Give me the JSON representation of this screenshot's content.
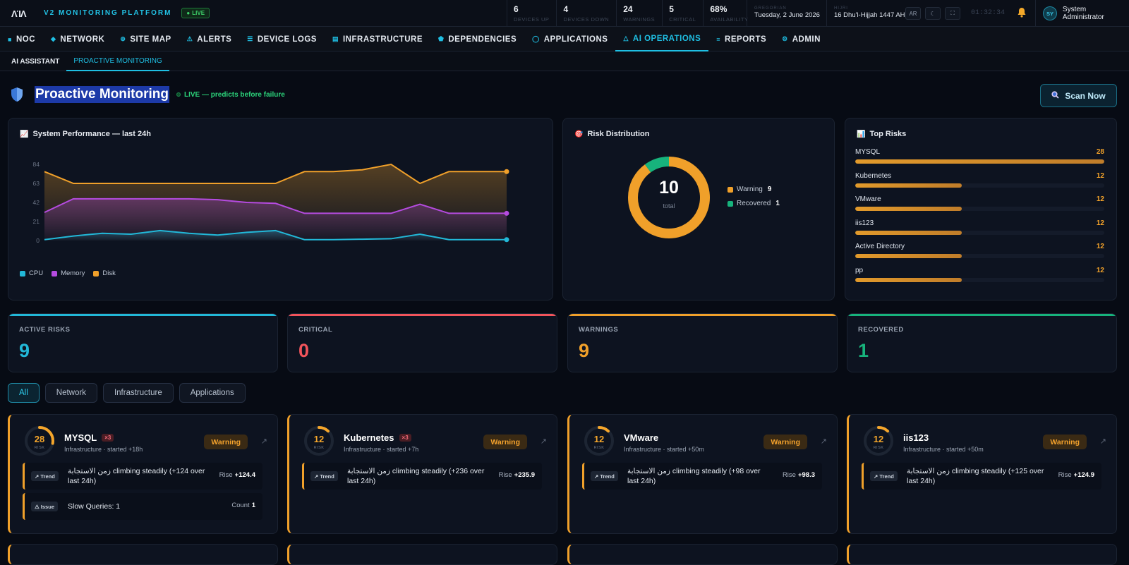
{
  "app": {
    "logo_text": "ΛΊΛ",
    "brand": "V2 MONITORING PLATFORM",
    "live_label": "LIVE"
  },
  "stats": [
    {
      "value": "6",
      "label": "DEVICES UP"
    },
    {
      "value": "4",
      "label": "DEVICES DOWN"
    },
    {
      "value": "24",
      "label": "WARNINGS"
    },
    {
      "value": "5",
      "label": "CRITICAL"
    },
    {
      "value": "68%",
      "label": "AVAILABILITY"
    }
  ],
  "dates": {
    "gregorian_label": "GREGORIAN",
    "gregorian": "Tuesday, 2 June 2026",
    "hijri_label": "HIJRI",
    "hijri": "16 Dhu'l-Hijjah 1447 AH"
  },
  "toolbar": {
    "lang": "AR",
    "clock": "01:32:34"
  },
  "user": {
    "initials": "SY",
    "name": "System Administrator"
  },
  "nav": [
    {
      "label": "NOC",
      "icon": "grid-icon"
    },
    {
      "label": "NETWORK",
      "icon": "network-icon"
    },
    {
      "label": "SITE MAP",
      "icon": "map-icon"
    },
    {
      "label": "ALERTS",
      "icon": "warning-icon"
    },
    {
      "label": "DEVICE LOGS",
      "icon": "list-icon"
    },
    {
      "label": "INFRASTRUCTURE",
      "icon": "server-icon"
    },
    {
      "label": "DEPENDENCIES",
      "icon": "dependencies-icon"
    },
    {
      "label": "APPLICATIONS",
      "icon": "app-icon"
    },
    {
      "label": "AI OPERATIONS",
      "icon": "ai-icon",
      "active": true
    },
    {
      "label": "REPORTS",
      "icon": "report-icon"
    },
    {
      "label": "ADMIN",
      "icon": "gear-icon"
    }
  ],
  "subnav": [
    {
      "label": "AI ASSISTANT"
    },
    {
      "label": "PROACTIVE MONITORING",
      "active": true
    }
  ],
  "page": {
    "title": "Proactive Monitoring",
    "live_text": "LIVE — predicts before failure",
    "scan_label": "Scan Now"
  },
  "perf": {
    "title": "System Performance — last 24h",
    "chart_data": {
      "type": "area",
      "y_ticks": [
        0,
        21,
        42,
        63,
        84
      ],
      "ylim": [
        0,
        84
      ],
      "series": [
        {
          "name": "CPU",
          "color": "#22b8d8",
          "values": [
            1,
            5,
            8,
            7,
            11,
            8,
            6,
            9,
            11,
            1,
            1,
            1.5,
            2,
            7,
            1,
            1,
            1
          ]
        },
        {
          "name": "Memory",
          "color": "#b54be0",
          "values": [
            31,
            46,
            46,
            46,
            46,
            46,
            45,
            42,
            41,
            30,
            30,
            30,
            30,
            40,
            30,
            30,
            30
          ]
        },
        {
          "name": "Disk",
          "color": "#f0a02a",
          "values": [
            76,
            63,
            63,
            63,
            63,
            63,
            63,
            63,
            63,
            76,
            76,
            78,
            84,
            63,
            76,
            76,
            76
          ]
        }
      ]
    }
  },
  "risk_dist": {
    "title": "Risk Distribution",
    "total_label": "total",
    "chart_data": {
      "type": "pie",
      "total": 10,
      "slices": [
        {
          "name": "Warning",
          "value": 9,
          "color": "#f0a02a"
        },
        {
          "name": "Recovered",
          "value": 1,
          "color": "#17b37c"
        }
      ]
    }
  },
  "top_risks": {
    "title": "Top Risks",
    "max": 28,
    "items": [
      {
        "name": "MYSQL",
        "value": 28
      },
      {
        "name": "Kubernetes",
        "value": 12
      },
      {
        "name": "VMware",
        "value": 12
      },
      {
        "name": "iis123",
        "value": 12
      },
      {
        "name": "Active Directory",
        "value": 12
      },
      {
        "name": "pp",
        "value": 12
      }
    ]
  },
  "kpis": [
    {
      "label": "ACTIVE RISKS",
      "value": "9",
      "color": "#22b8d8"
    },
    {
      "label": "CRITICAL",
      "value": "0",
      "color": "#f2545b"
    },
    {
      "label": "WARNINGS",
      "value": "9",
      "color": "#f0a02a"
    },
    {
      "label": "RECOVERED",
      "value": "1",
      "color": "#17b37c"
    }
  ],
  "filters": [
    {
      "label": "All",
      "active": true
    },
    {
      "label": "Network"
    },
    {
      "label": "Infrastructure"
    },
    {
      "label": "Applications"
    }
  ],
  "risk_cards": [
    {
      "score": "28",
      "score_label": "RISK",
      "score_fraction": 0.28,
      "name": "MYSQL",
      "multiplier": "×3",
      "sub": "Infrastructure · started +18h",
      "status": "Warning",
      "findings": [
        {
          "tag": "↗ Trend",
          "text": "زمن الاستجابة climbing steadily (+124 over last 24h)",
          "metric_label": "Rise",
          "metric_value": "+124.4"
        },
        {
          "tag": "⚠ Issue",
          "text": "Slow Queries: 1",
          "metric_label": "Count",
          "metric_value": "1"
        }
      ]
    },
    {
      "score": "12",
      "score_label": "RISK",
      "score_fraction": 0.12,
      "name": "Kubernetes",
      "multiplier": "×3",
      "sub": "Infrastructure · started +7h",
      "status": "Warning",
      "findings": [
        {
          "tag": "↗ Trend",
          "text": "زمن الاستجابة climbing steadily (+236 over last 24h)",
          "metric_label": "Rise",
          "metric_value": "+235.9"
        }
      ]
    },
    {
      "score": "12",
      "score_label": "RISK",
      "score_fraction": 0.12,
      "name": "VMware",
      "multiplier": "",
      "sub": "Infrastructure · started +50m",
      "status": "Warning",
      "findings": [
        {
          "tag": "↗ Trend",
          "text": "زمن الاستجابة climbing steadily (+98 over last 24h)",
          "metric_label": "Rise",
          "metric_value": "+98.3"
        }
      ]
    },
    {
      "score": "12",
      "score_label": "RISK",
      "score_fraction": 0.12,
      "name": "iis123",
      "multiplier": "",
      "sub": "Infrastructure · started +50m",
      "status": "Warning",
      "findings": [
        {
          "tag": "↗ Trend",
          "text": "زمن الاستجابة climbing steadily (+125 over last 24h)",
          "metric_label": "Rise",
          "metric_value": "+124.9"
        }
      ]
    }
  ]
}
